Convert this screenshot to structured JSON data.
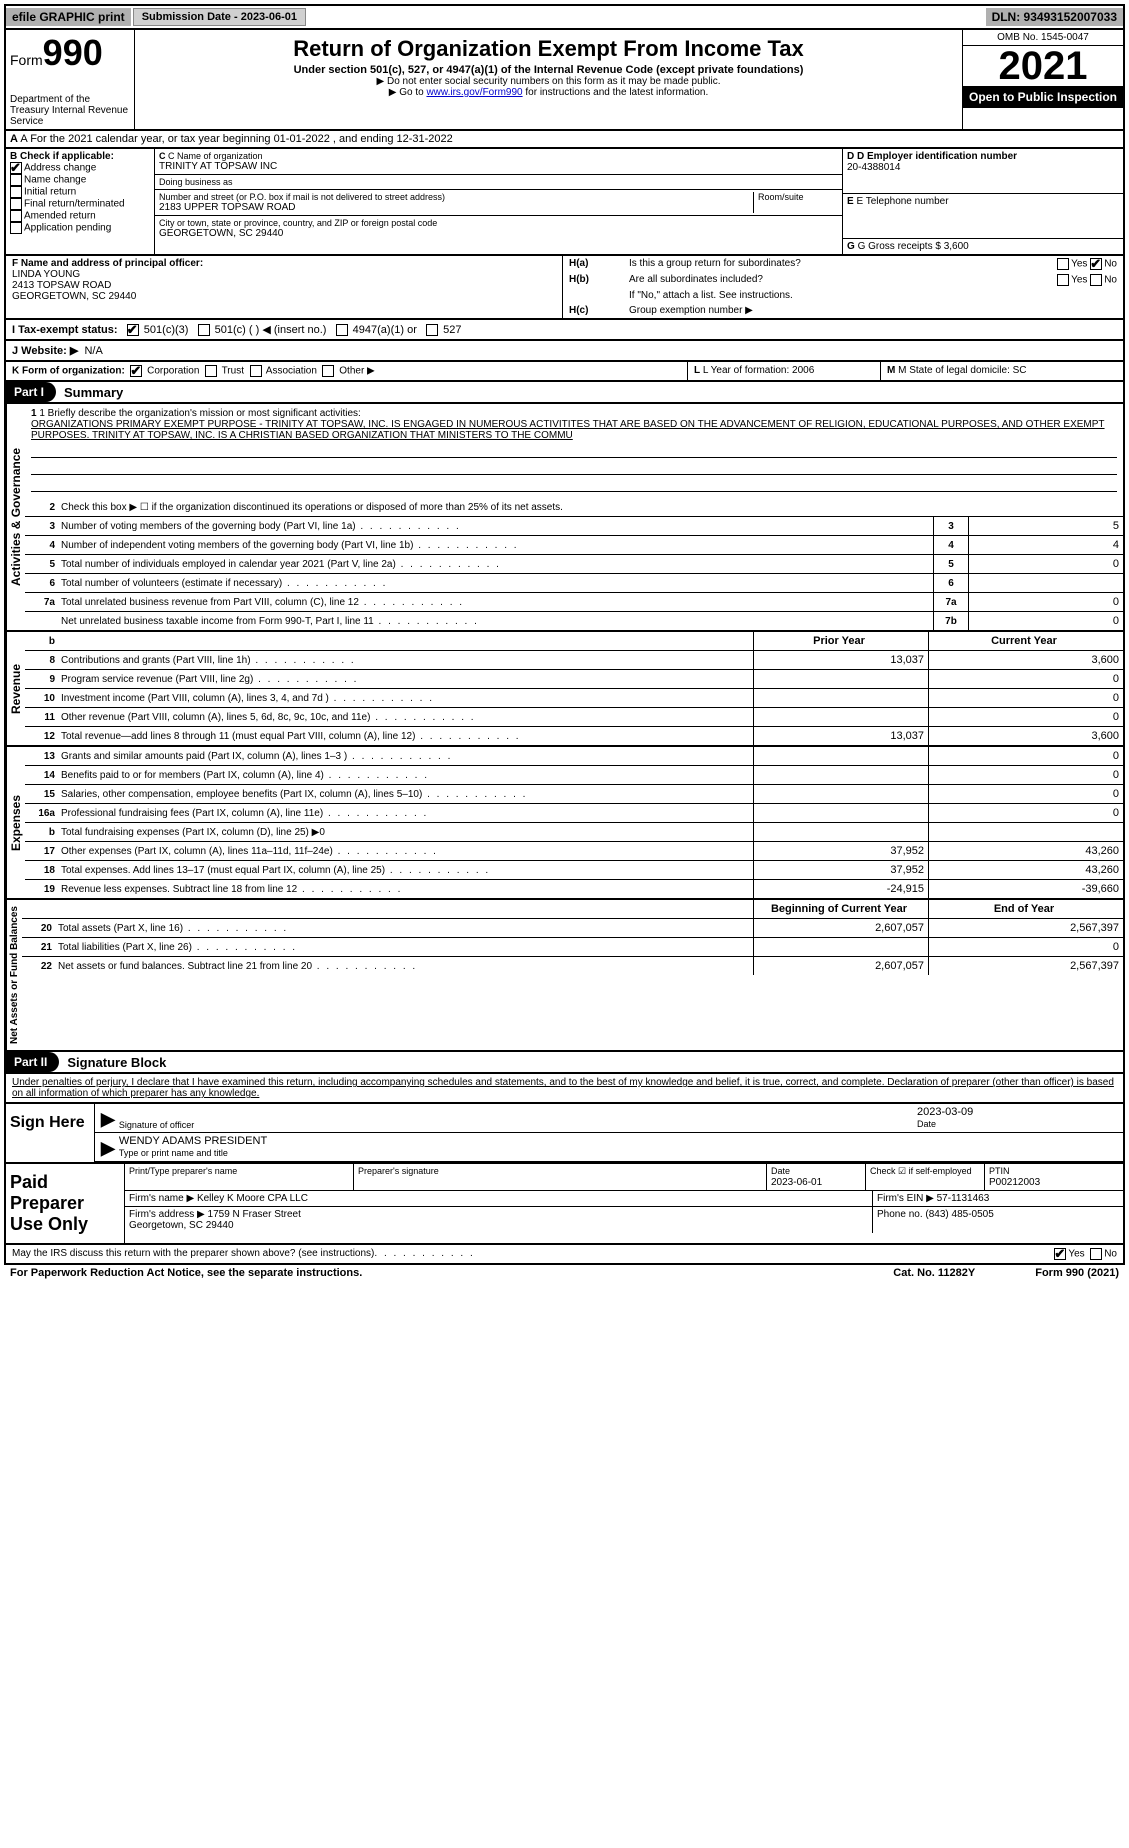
{
  "topbar": {
    "efile": "efile GRAPHIC print",
    "submission_label": "Submission Date - 2023-06-01",
    "dln": "DLN: 93493152007033"
  },
  "header": {
    "form_label": "Form",
    "form_num": "990",
    "dept": "Department of the Treasury\nInternal Revenue Service",
    "title": "Return of Organization Exempt From Income Tax",
    "subtitle": "Under section 501(c), 527, or 4947(a)(1) of the Internal Revenue Code (except private foundations)",
    "arrow1": "▶ Do not enter social security numbers on this form as it may be made public.",
    "arrow2_pre": "▶ Go to ",
    "arrow2_link": "www.irs.gov/Form990",
    "arrow2_post": " for instructions and the latest information.",
    "omb": "OMB No. 1545-0047",
    "year": "2021",
    "inspection": "Open to Public Inspection"
  },
  "rowA": "A For the 2021 calendar year, or tax year beginning 01-01-2022   , and ending 12-31-2022",
  "boxB": {
    "label": "B Check if applicable:",
    "items": [
      "Address change",
      "Name change",
      "Initial return",
      "Final return/terminated",
      "Amended return",
      "Application pending"
    ],
    "checked": [
      true,
      false,
      false,
      false,
      false,
      false
    ]
  },
  "boxC": {
    "name_label": "C Name of organization",
    "name": "TRINITY AT TOPSAW INC",
    "dba_label": "Doing business as",
    "dba": "",
    "street_label": "Number and street (or P.O. box if mail is not delivered to street address)",
    "room_label": "Room/suite",
    "street": "2183 UPPER TOPSAW ROAD",
    "city_label": "City or town, state or province, country, and ZIP or foreign postal code",
    "city": "GEORGETOWN, SC  29440"
  },
  "boxD": {
    "label": "D Employer identification number",
    "value": "20-4388014"
  },
  "boxE": {
    "label": "E Telephone number",
    "value": ""
  },
  "boxG": {
    "label": "G Gross receipts $ 3,600"
  },
  "boxF": {
    "label": "F  Name and address of principal officer:",
    "name": "LINDA YOUNG",
    "addr1": "2413 TOPSAW ROAD",
    "addr2": "GEORGETOWN, SC  29440"
  },
  "boxH": {
    "a_label": "Is this a group return for subordinates?",
    "b_label": "Are all subordinates included?",
    "b_note": "If \"No,\" attach a list. See instructions.",
    "c_label": "Group exemption number ▶"
  },
  "taxI": "I  Tax-exempt status:",
  "taxOptions": [
    "501(c)(3)",
    "501(c) (  ) ◀ (insert no.)",
    "4947(a)(1) or",
    "527"
  ],
  "websiteJ": {
    "label": "J  Website: ▶",
    "value": "N/A"
  },
  "rowK": "K Form of organization:",
  "kOptions": [
    "Corporation",
    "Trust",
    "Association",
    "Other ▶"
  ],
  "rowL": {
    "label": "L Year of formation: 2006"
  },
  "rowM": {
    "label": "M State of legal domicile: SC"
  },
  "part1": {
    "label": "Part I",
    "title": "Summary"
  },
  "mission": {
    "line1_label": "1  Briefly describe the organization's mission or most significant activities:",
    "text": "ORGANIZATIONS PRIMARY EXEMPT PURPOSE - TRINITY AT TOPSAW, INC. IS ENGAGED IN NUMEROUS ACTIVITITES THAT ARE BASED ON THE ADVANCEMENT OF RELIGION, EDUCATIONAL PURPOSES, AND OTHER EXEMPT PURPOSES. TRINITY AT TOPSAW, INC. IS A CHRISTIAN BASED ORGANIZATION THAT MINISTERS TO THE COMMU"
  },
  "governance": {
    "section_label": "Activities & Governance",
    "line2": "Check this box ▶ ☐  if the organization discontinued its operations or disposed of more than 25% of its net assets.",
    "rows": [
      {
        "num": "3",
        "desc": "Number of voting members of the governing body (Part VI, line 1a)",
        "col": "3",
        "val": "5"
      },
      {
        "num": "4",
        "desc": "Number of independent voting members of the governing body (Part VI, line 1b)",
        "col": "4",
        "val": "4"
      },
      {
        "num": "5",
        "desc": "Total number of individuals employed in calendar year 2021 (Part V, line 2a)",
        "col": "5",
        "val": "0"
      },
      {
        "num": "6",
        "desc": "Total number of volunteers (estimate if necessary)",
        "col": "6",
        "val": ""
      },
      {
        "num": "7a",
        "desc": "Total unrelated business revenue from Part VIII, column (C), line 12",
        "col": "7a",
        "val": "0"
      },
      {
        "num": "",
        "desc": "Net unrelated business taxable income from Form 990-T, Part I, line 11",
        "col": "7b",
        "val": "0"
      }
    ]
  },
  "revenue": {
    "section_label": "Revenue",
    "header_b": "b",
    "header_py": "Prior Year",
    "header_cy": "Current Year",
    "rows": [
      {
        "num": "8",
        "desc": "Contributions and grants (Part VIII, line 1h)",
        "py": "13,037",
        "cy": "3,600"
      },
      {
        "num": "9",
        "desc": "Program service revenue (Part VIII, line 2g)",
        "py": "",
        "cy": "0"
      },
      {
        "num": "10",
        "desc": "Investment income (Part VIII, column (A), lines 3, 4, and 7d )",
        "py": "",
        "cy": "0"
      },
      {
        "num": "11",
        "desc": "Other revenue (Part VIII, column (A), lines 5, 6d, 8c, 9c, 10c, and 11e)",
        "py": "",
        "cy": "0"
      },
      {
        "num": "12",
        "desc": "Total revenue—add lines 8 through 11 (must equal Part VIII, column (A), line 12)",
        "py": "13,037",
        "cy": "3,600"
      }
    ]
  },
  "expenses": {
    "section_label": "Expenses",
    "rows": [
      {
        "num": "13",
        "desc": "Grants and similar amounts paid (Part IX, column (A), lines 1–3 )",
        "py": "",
        "cy": "0"
      },
      {
        "num": "14",
        "desc": "Benefits paid to or for members (Part IX, column (A), line 4)",
        "py": "",
        "cy": "0"
      },
      {
        "num": "15",
        "desc": "Salaries, other compensation, employee benefits (Part IX, column (A), lines 5–10)",
        "py": "",
        "cy": "0"
      },
      {
        "num": "16a",
        "desc": "Professional fundraising fees (Part IX, column (A), line 11e)",
        "py": "",
        "cy": "0"
      },
      {
        "num": "b",
        "desc": "Total fundraising expenses (Part IX, column (D), line 25) ▶0",
        "py": "GREY",
        "cy": "GREY"
      },
      {
        "num": "17",
        "desc": "Other expenses (Part IX, column (A), lines 11a–11d, 11f–24e)",
        "py": "37,952",
        "cy": "43,260"
      },
      {
        "num": "18",
        "desc": "Total expenses. Add lines 13–17 (must equal Part IX, column (A), line 25)",
        "py": "37,952",
        "cy": "43,260"
      },
      {
        "num": "19",
        "desc": "Revenue less expenses. Subtract line 18 from line 12",
        "py": "-24,915",
        "cy": "-39,660"
      }
    ]
  },
  "netassets": {
    "section_label": "Net Assets or Fund Balances",
    "header_py": "Beginning of Current Year",
    "header_cy": "End of Year",
    "rows": [
      {
        "num": "20",
        "desc": "Total assets (Part X, line 16)",
        "py": "2,607,057",
        "cy": "2,567,397"
      },
      {
        "num": "21",
        "desc": "Total liabilities (Part X, line 26)",
        "py": "",
        "cy": "0"
      },
      {
        "num": "22",
        "desc": "Net assets or fund balances. Subtract line 21 from line 20",
        "py": "2,607,057",
        "cy": "2,567,397"
      }
    ]
  },
  "part2": {
    "label": "Part II",
    "title": "Signature Block"
  },
  "penalties": "Under penalties of perjury, I declare that I have examined this return, including accompanying schedules and statements, and to the best of my knowledge and belief, it is true, correct, and complete. Declaration of preparer (other than officer) is based on all information of which preparer has any knowledge.",
  "sign": {
    "here": "Sign Here",
    "sig_label": "Signature of officer",
    "date": "2023-03-09",
    "date_label": "Date",
    "name": "WENDY ADAMS  PRESIDENT",
    "name_label": "Type or print name and title"
  },
  "preparer": {
    "label": "Paid Preparer Use Only",
    "print_label": "Print/Type preparer's name",
    "sig_label": "Preparer's signature",
    "date_label": "Date",
    "date": "2023-06-01",
    "check_label": "Check ☑ if self-employed",
    "ptin_label": "PTIN",
    "ptin": "P00212003",
    "firm_name_label": "Firm's name    ▶",
    "firm_name": "Kelley K Moore CPA LLC",
    "firm_ein_label": "Firm's EIN ▶",
    "firm_ein": "57-1131463",
    "firm_addr_label": "Firm's address ▶",
    "firm_addr": "1759 N Fraser Street\nGeorgetown, SC  29440",
    "phone_label": "Phone no.",
    "phone": "(843) 485-0505"
  },
  "footer": {
    "discuss": "May the IRS discuss this return with the preparer shown above? (see instructions)",
    "yes": "Yes",
    "no": "No",
    "paperwork": "For Paperwork Reduction Act Notice, see the separate instructions.",
    "cat": "Cat. No. 11282Y",
    "form": "Form 990 (2021)"
  }
}
